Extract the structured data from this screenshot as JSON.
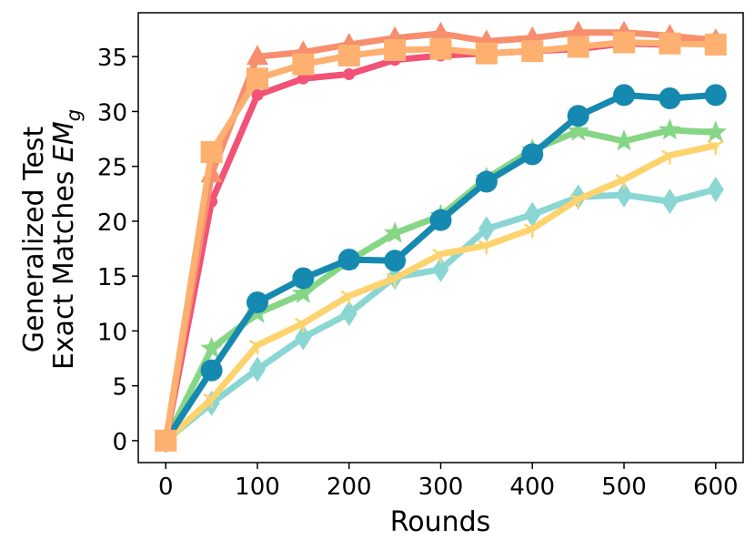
{
  "chart_data": {
    "type": "line",
    "xlabel": "Rounds",
    "ylabel_line1": "Generalized Test",
    "ylabel_line2_text": "Exact Matches ",
    "ylabel_line2_var": "EM",
    "ylabel_line2_sub": "g",
    "xlim": [
      -30,
      630
    ],
    "ylim": [
      -2,
      39
    ],
    "xticks": [
      0,
      100,
      200,
      300,
      400,
      500,
      600
    ],
    "yticks": [
      0,
      5,
      10,
      15,
      20,
      25,
      30,
      35
    ],
    "x": [
      0,
      50,
      100,
      150,
      200,
      250,
      300,
      350,
      400,
      450,
      500,
      550,
      600
    ],
    "grid": false,
    "series": [
      {
        "color": "#8ad6d3",
        "marker": "diamond",
        "values": [
          0,
          3.4,
          6.5,
          9.4,
          11.6,
          14.9,
          15.6,
          19.3,
          20.6,
          22.2,
          22.4,
          21.8,
          22.9
        ]
      },
      {
        "color": "#fdd36e",
        "marker": "tri_down",
        "values": [
          0,
          3.8,
          8.7,
          10.7,
          13.2,
          14.8,
          17.0,
          17.8,
          19.3,
          22.0,
          23.8,
          26.0,
          26.9
        ]
      },
      {
        "color": "#86d686",
        "marker": "star",
        "values": [
          0,
          8.4,
          11.6,
          13.4,
          16.4,
          18.9,
          20.5,
          23.9,
          26.5,
          28.2,
          27.3,
          28.3,
          28.1
        ]
      },
      {
        "color": "#1589b0",
        "marker": "circle",
        "values": [
          0,
          6.4,
          12.6,
          14.8,
          16.5,
          16.4,
          20.1,
          23.6,
          26.1,
          29.6,
          31.5,
          31.2,
          31.5
        ]
      },
      {
        "color": "#f15275",
        "marker": "smallcircle",
        "values": [
          0,
          21.8,
          31.5,
          33.0,
          33.4,
          34.7,
          35.1,
          35.3,
          35.5,
          35.7,
          36.2,
          36.1,
          36.5
        ]
      },
      {
        "color": "#f78e6d",
        "marker": "triangle",
        "values": [
          0,
          24.3,
          35.0,
          35.4,
          36.1,
          36.7,
          37.1,
          36.4,
          36.7,
          37.2,
          37.2,
          36.9,
          36.5
        ]
      },
      {
        "color": "#fdb070",
        "marker": "square",
        "values": [
          0,
          26.3,
          33.0,
          34.3,
          35.1,
          35.6,
          35.7,
          35.3,
          35.5,
          35.9,
          36.3,
          36.2,
          36.1
        ]
      }
    ]
  }
}
